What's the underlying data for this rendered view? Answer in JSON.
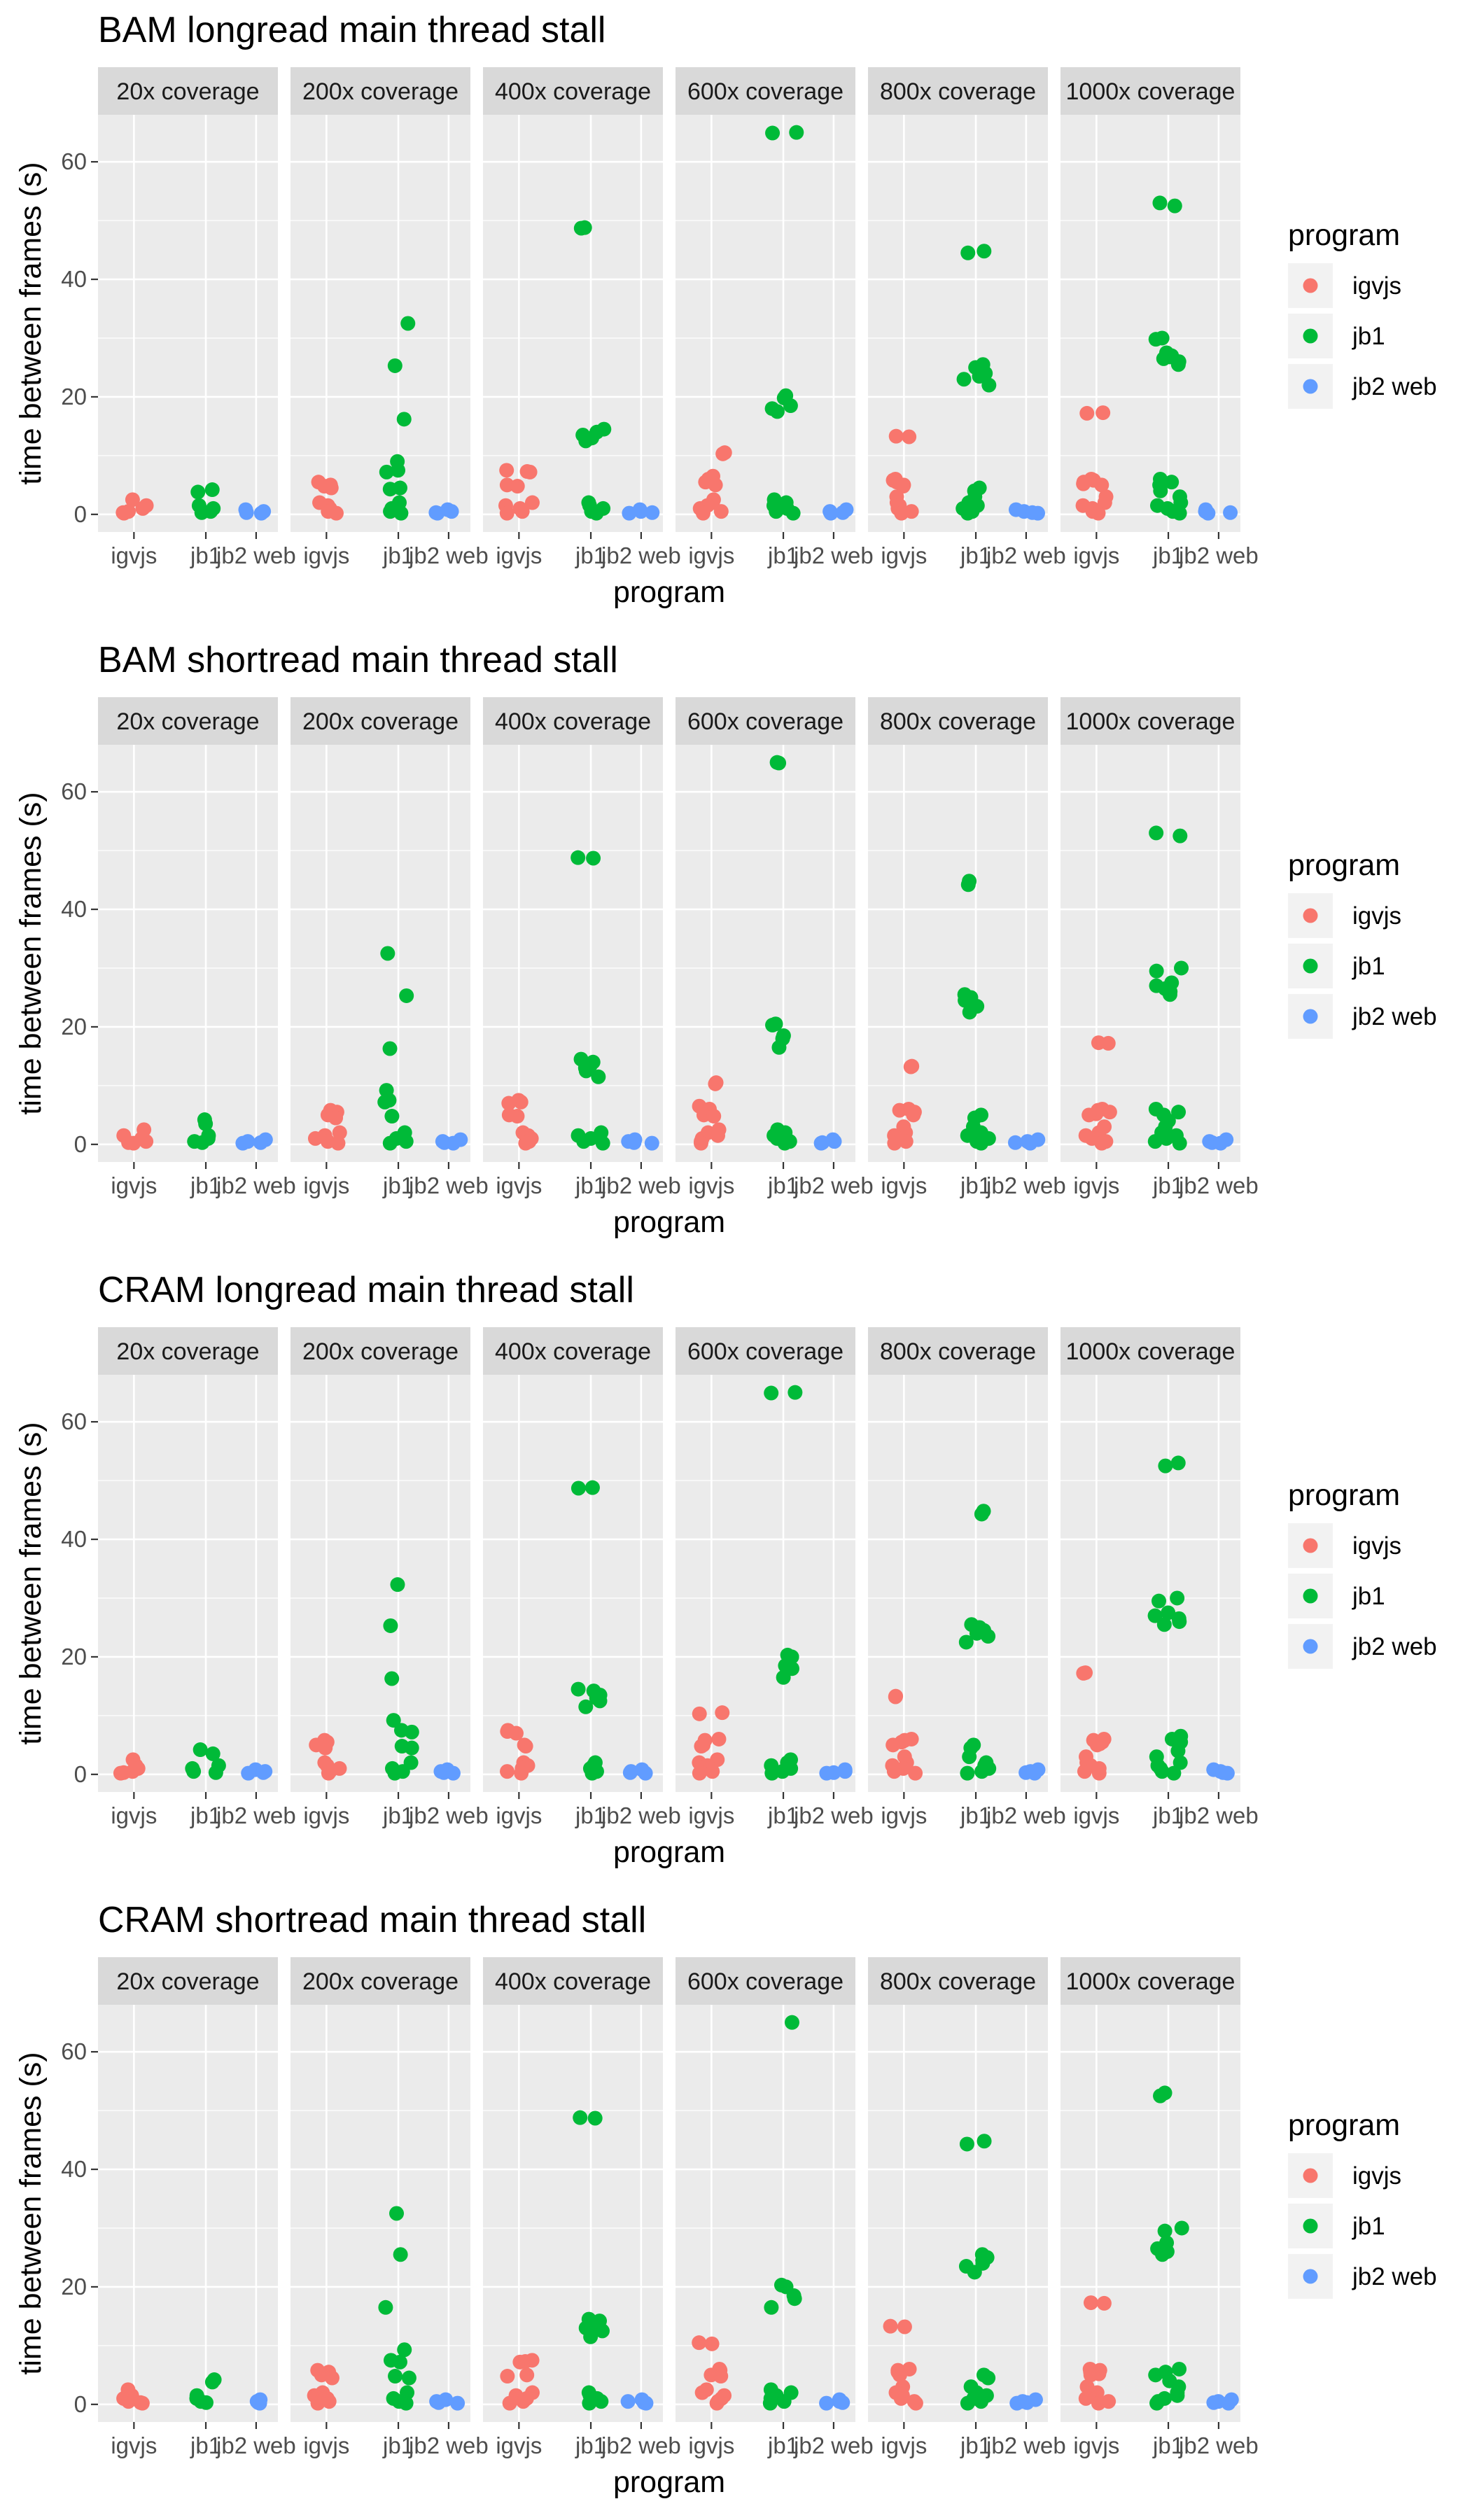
{
  "legend_title": "program",
  "legend": [
    {
      "label": "igvjs",
      "color": "#F8766D"
    },
    {
      "label": "jb1",
      "color": "#00BA38"
    },
    {
      "label": "jb2 web",
      "color": "#619CFF"
    }
  ],
  "xlabel": "program",
  "ylabel": "time between frames (s)",
  "facets": [
    "20x coverage",
    "200x coverage",
    "400x coverage",
    "600x coverage",
    "800x coverage",
    "1000x coverage"
  ],
  "categories": [
    "igvjs",
    "jb1",
    "jb2 web"
  ],
  "y_ticks": [
    0,
    20,
    40,
    60
  ],
  "ylim": [
    -3,
    68
  ],
  "chart_data": [
    {
      "type": "scatter",
      "title": "BAM longread main thread stall",
      "panels": [
        {
          "igvjs": [
            2.5,
            1.5,
            1,
            0.5,
            0.3,
            0.2
          ],
          "jb1": [
            4.2,
            3.8,
            1.5,
            1,
            0.5,
            0.3
          ],
          "jb2 web": [
            0.8,
            0.5,
            0.3,
            0.2
          ]
        },
        {
          "igvjs": [
            5.5,
            5,
            4.8,
            4.5,
            2,
            1.5,
            1,
            0.5,
            0.2
          ],
          "jb1": [
            32.5,
            25.3,
            16.2,
            9,
            7.5,
            7.2,
            4.5,
            4.3,
            2,
            1,
            0.5,
            0.2
          ],
          "jb2 web": [
            0.8,
            0.5,
            0.3,
            0.2
          ]
        },
        {
          "igvjs": [
            7.5,
            7.3,
            7.2,
            5,
            4.8,
            2,
            1.5,
            1,
            0.5,
            0.2
          ],
          "jb1": [
            48.8,
            48.7,
            14.5,
            14,
            13.5,
            13,
            12.5,
            2,
            1.5,
            1,
            0.5,
            0.2
          ],
          "jb2 web": [
            0.8,
            0.5,
            0.3,
            0.2
          ]
        },
        {
          "igvjs": [
            10.5,
            10.3,
            6.5,
            6,
            5.5,
            5,
            2.5,
            2,
            1.5,
            1,
            0.5,
            0.2
          ],
          "jb1": [
            65,
            64.9,
            20.2,
            19.8,
            18.5,
            18,
            17.5,
            2.5,
            2,
            1.5,
            1,
            0.5,
            0.2
          ],
          "jb2 web": [
            0.8,
            0.5,
            0.3,
            0.2
          ]
        },
        {
          "igvjs": [
            13.3,
            13.2,
            6,
            5.8,
            5.5,
            5,
            4.8,
            3,
            2,
            1.5,
            1,
            0.5,
            0.2
          ],
          "jb1": [
            44.8,
            44.5,
            25.5,
            25,
            24.5,
            24,
            23.5,
            23,
            22,
            4.5,
            4,
            3,
            2,
            1.5,
            1,
            0.5,
            0.2
          ],
          "jb2 web": [
            0.8,
            0.5,
            0.3,
            0.2
          ]
        },
        {
          "igvjs": [
            17.3,
            17.2,
            6,
            5.8,
            5.5,
            5.2,
            5,
            3,
            2,
            1.5,
            1,
            0.5,
            0.2
          ],
          "jb1": [
            53,
            52.5,
            30,
            29.8,
            27.5,
            27,
            26.8,
            26.5,
            26,
            25.5,
            6,
            5.5,
            5,
            4,
            3,
            2,
            1.5,
            1,
            0.5,
            0.2
          ],
          "jb2 web": [
            0.8,
            0.5,
            0.3,
            0.2
          ]
        }
      ]
    },
    {
      "type": "scatter",
      "title": "BAM shortread main thread stall",
      "panels": [
        {
          "igvjs": [
            2.5,
            1.5,
            1,
            0.5,
            0.3,
            0.2
          ],
          "jb1": [
            4.2,
            3.5,
            1.5,
            1,
            0.5,
            0.3
          ],
          "jb2 web": [
            0.8,
            0.5,
            0.3,
            0.2
          ]
        },
        {
          "igvjs": [
            5.8,
            5.5,
            5,
            4.5,
            2,
            1.5,
            1,
            0.5,
            0.2
          ],
          "jb1": [
            32.5,
            25.3,
            16.3,
            9.2,
            7.5,
            7.2,
            4.8,
            2,
            1,
            0.5,
            0.2
          ],
          "jb2 web": [
            0.8,
            0.5,
            0.3,
            0.2
          ]
        },
        {
          "igvjs": [
            7.5,
            7.2,
            7,
            5,
            4.8,
            2,
            1.5,
            1,
            0.5,
            0.2
          ],
          "jb1": [
            48.8,
            48.7,
            14.5,
            14,
            13.5,
            13,
            12.5,
            11.5,
            2,
            1.5,
            1,
            0.5,
            0.2
          ],
          "jb2 web": [
            0.8,
            0.5,
            0.3,
            0.2
          ]
        },
        {
          "igvjs": [
            10.5,
            10.3,
            6.5,
            6,
            5,
            4.8,
            2.5,
            2,
            1.5,
            1,
            0.5,
            0.2
          ],
          "jb1": [
            65,
            64.9,
            20.5,
            20.3,
            18.5,
            18,
            16.5,
            2.5,
            2,
            1.5,
            1,
            0.5,
            0.2
          ],
          "jb2 web": [
            0.8,
            0.5,
            0.3,
            0.2
          ]
        },
        {
          "igvjs": [
            13.3,
            13.2,
            6,
            5.8,
            5.5,
            5,
            3,
            2,
            1.5,
            1,
            0.5,
            0.2
          ],
          "jb1": [
            44.8,
            44.2,
            25.5,
            25,
            24.5,
            24,
            23.5,
            22.5,
            5,
            4.5,
            3,
            2,
            1.5,
            1,
            0.5,
            0.2
          ],
          "jb2 web": [
            0.8,
            0.5,
            0.3,
            0.2
          ]
        },
        {
          "igvjs": [
            17.3,
            17.2,
            6,
            5.8,
            5.5,
            5.2,
            5,
            3,
            2,
            1.5,
            1,
            0.5,
            0.2
          ],
          "jb1": [
            53,
            52.5,
            30,
            29.5,
            27.5,
            27,
            26.5,
            26,
            25.5,
            6,
            5.5,
            5,
            4,
            3,
            2,
            1.5,
            1,
            0.5,
            0.2
          ],
          "jb2 web": [
            0.8,
            0.5,
            0.3,
            0.2
          ]
        }
      ]
    },
    {
      "type": "scatter",
      "title": "CRAM longread main thread stall",
      "panels": [
        {
          "igvjs": [
            2.5,
            1.5,
            1,
            0.5,
            0.3,
            0.2
          ],
          "jb1": [
            4.2,
            3.5,
            1.5,
            1,
            0.5,
            0.3
          ],
          "jb2 web": [
            0.8,
            0.5,
            0.3,
            0.2
          ]
        },
        {
          "igvjs": [
            5.8,
            5.5,
            5,
            4.5,
            2,
            1.5,
            1,
            0.5,
            0.2
          ],
          "jb1": [
            32.3,
            25.3,
            16.3,
            9.2,
            7.5,
            7.2,
            4.8,
            4.5,
            2,
            1,
            0.5,
            0.2
          ],
          "jb2 web": [
            0.8,
            0.5,
            0.3,
            0.2
          ]
        },
        {
          "igvjs": [
            7.5,
            7.3,
            7,
            5,
            4.8,
            2,
            1.5,
            1,
            0.5,
            0.2
          ],
          "jb1": [
            48.8,
            48.7,
            14.5,
            14.2,
            13.5,
            13,
            12.5,
            11.5,
            2,
            1.5,
            1,
            0.5,
            0.2
          ],
          "jb2 web": [
            0.8,
            0.5,
            0.3,
            0.2
          ]
        },
        {
          "igvjs": [
            10.5,
            10.3,
            6,
            5.8,
            5,
            4.8,
            2.5,
            2,
            1.5,
            1,
            0.5,
            0.2
          ],
          "jb1": [
            65,
            64.9,
            20.3,
            20,
            18.5,
            18,
            16.5,
            2.5,
            2,
            1.5,
            1,
            0.5,
            0.2
          ],
          "jb2 web": [
            0.8,
            0.5,
            0.3,
            0.2
          ]
        },
        {
          "igvjs": [
            13.3,
            13.2,
            6,
            5.8,
            5.5,
            5,
            3,
            2,
            1.5,
            1,
            0.5,
            0.2
          ],
          "jb1": [
            44.8,
            44.3,
            25.5,
            25,
            24.5,
            24,
            23.5,
            22.5,
            5,
            4.5,
            3,
            2,
            1.5,
            1,
            0.5,
            0.2
          ],
          "jb2 web": [
            0.8,
            0.5,
            0.3,
            0.2
          ]
        },
        {
          "igvjs": [
            17.3,
            17.2,
            6,
            5.8,
            5.5,
            5.2,
            5,
            3,
            2,
            1.5,
            1,
            0.5,
            0.2
          ],
          "jb1": [
            53,
            52.5,
            30,
            29.5,
            27.5,
            27,
            26.5,
            26,
            25.5,
            6.5,
            6,
            5.5,
            4,
            3,
            2,
            1.5,
            1,
            0.5,
            0.2
          ],
          "jb2 web": [
            0.8,
            0.5,
            0.3,
            0.2
          ]
        }
      ]
    },
    {
      "type": "scatter",
      "title": "CRAM shortread main thread stall",
      "panels": [
        {
          "igvjs": [
            2.5,
            1.5,
            1,
            0.5,
            0.3,
            0.2
          ],
          "jb1": [
            4.2,
            3.8,
            1.5,
            1,
            0.5,
            0.3
          ],
          "jb2 web": [
            0.8,
            0.5,
            0.3,
            0.2
          ]
        },
        {
          "igvjs": [
            5.8,
            5.5,
            5,
            4.5,
            2,
            1.5,
            1,
            0.5,
            0.2
          ],
          "jb1": [
            32.5,
            25.5,
            16.5,
            9.3,
            7.5,
            7.2,
            4.8,
            4.5,
            2,
            1,
            0.5,
            0.2
          ],
          "jb2 web": [
            0.8,
            0.5,
            0.3,
            0.2
          ]
        },
        {
          "igvjs": [
            7.5,
            7.3,
            7.2,
            5,
            4.8,
            2,
            1.5,
            1,
            0.5,
            0.2
          ],
          "jb1": [
            48.8,
            48.7,
            14.5,
            14.2,
            13.5,
            13,
            12.5,
            11.5,
            2,
            1.5,
            1,
            0.5,
            0.2
          ],
          "jb2 web": [
            0.8,
            0.5,
            0.3,
            0.2
          ]
        },
        {
          "igvjs": [
            10.5,
            10.3,
            6,
            5.8,
            5,
            4.8,
            2.5,
            2,
            1.5,
            1,
            0.5,
            0.2
          ],
          "jb1": [
            65,
            20.3,
            20,
            18.5,
            18,
            16.5,
            2.5,
            2,
            1.5,
            1,
            0.5,
            0.2
          ],
          "jb2 web": [
            0.8,
            0.5,
            0.3,
            0.2
          ]
        },
        {
          "igvjs": [
            13.3,
            13.2,
            6,
            5.8,
            5.5,
            5,
            3,
            2,
            1.5,
            1,
            0.5,
            0.2
          ],
          "jb1": [
            44.8,
            44.3,
            25.5,
            25,
            24.5,
            24,
            23.5,
            22.5,
            5,
            4.5,
            3,
            2,
            1.5,
            1,
            0.5,
            0.2
          ],
          "jb2 web": [
            0.8,
            0.5,
            0.3,
            0.2
          ]
        },
        {
          "igvjs": [
            17.3,
            17.2,
            6,
            5.8,
            5.5,
            5.2,
            5,
            3,
            2,
            1.5,
            1,
            0.5,
            0.2
          ],
          "jb1": [
            53,
            52.5,
            30,
            29.5,
            27.5,
            27,
            26.5,
            26,
            25.5,
            6,
            5.5,
            5,
            4,
            3,
            2,
            1.5,
            1,
            0.5,
            0.2
          ],
          "jb2 web": [
            0.8,
            0.5,
            0.3,
            0.2
          ]
        }
      ]
    }
  ]
}
